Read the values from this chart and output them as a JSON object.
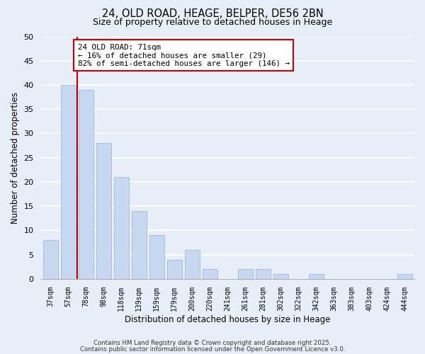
{
  "title": "24, OLD ROAD, HEAGE, BELPER, DE56 2BN",
  "subtitle": "Size of property relative to detached houses in Heage",
  "xlabel": "Distribution of detached houses by size in Heage",
  "ylabel": "Number of detached properties",
  "bar_color": "#c8d8f0",
  "bar_edge_color": "#a0b8e0",
  "background_color": "#e8eef8",
  "grid_color": "#ffffff",
  "categories": [
    "37sqm",
    "57sqm",
    "78sqm",
    "98sqm",
    "118sqm",
    "139sqm",
    "159sqm",
    "179sqm",
    "200sqm",
    "220sqm",
    "241sqm",
    "261sqm",
    "281sqm",
    "302sqm",
    "322sqm",
    "342sqm",
    "363sqm",
    "383sqm",
    "403sqm",
    "424sqm",
    "444sqm"
  ],
  "values": [
    8,
    40,
    39,
    28,
    21,
    14,
    9,
    4,
    6,
    2,
    0,
    2,
    2,
    1,
    0,
    1,
    0,
    0,
    0,
    0,
    1
  ],
  "ylim": [
    0,
    50
  ],
  "yticks": [
    0,
    5,
    10,
    15,
    20,
    25,
    30,
    35,
    40,
    45,
    50
  ],
  "red_line_x": 1.5,
  "annotation_line1": "24 OLD ROAD: 71sqm",
  "annotation_line2": "← 16% of detached houses are smaller (29)",
  "annotation_line3": "82% of semi-detached houses are larger (146) →",
  "annotation_box_color": "#ffffff",
  "annotation_box_edge": "#cc0000",
  "footnote1": "Contains HM Land Registry data © Crown copyright and database right 2025.",
  "footnote2": "Contains public sector information licensed under the Open Government Licence v3.0."
}
